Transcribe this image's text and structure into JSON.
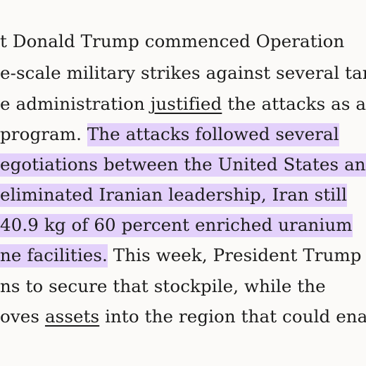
{
  "article": {
    "lines": [
      {
        "plain": "t Donald Trump commenced Operation"
      },
      {
        "plain": "e-scale military strikes against several target"
      },
      {
        "pre": "e administration ",
        "link": "justified",
        "post": " the attacks as a"
      },
      {
        "plain": " program. ",
        "highlight": "The attacks followed several"
      },
      {
        "highlight": "egotiations between the United States and"
      },
      {
        "highlight": "eliminated Iranian leadership, Iran still"
      },
      {
        "highlight": "40.9 kg of 60 percent enriched uranium"
      },
      {
        "highlight": "ne facilities.",
        "post": " This week, President Trump is"
      },
      {
        "plain": "ns to secure that stockpile, while the"
      },
      {
        "pre": "oves ",
        "link": "assets",
        "post": " into the region that could enabl"
      }
    ]
  },
  "colors": {
    "highlight": "#e3d1fb",
    "text": "#1c1c1c",
    "background": "#fbfaf8"
  }
}
